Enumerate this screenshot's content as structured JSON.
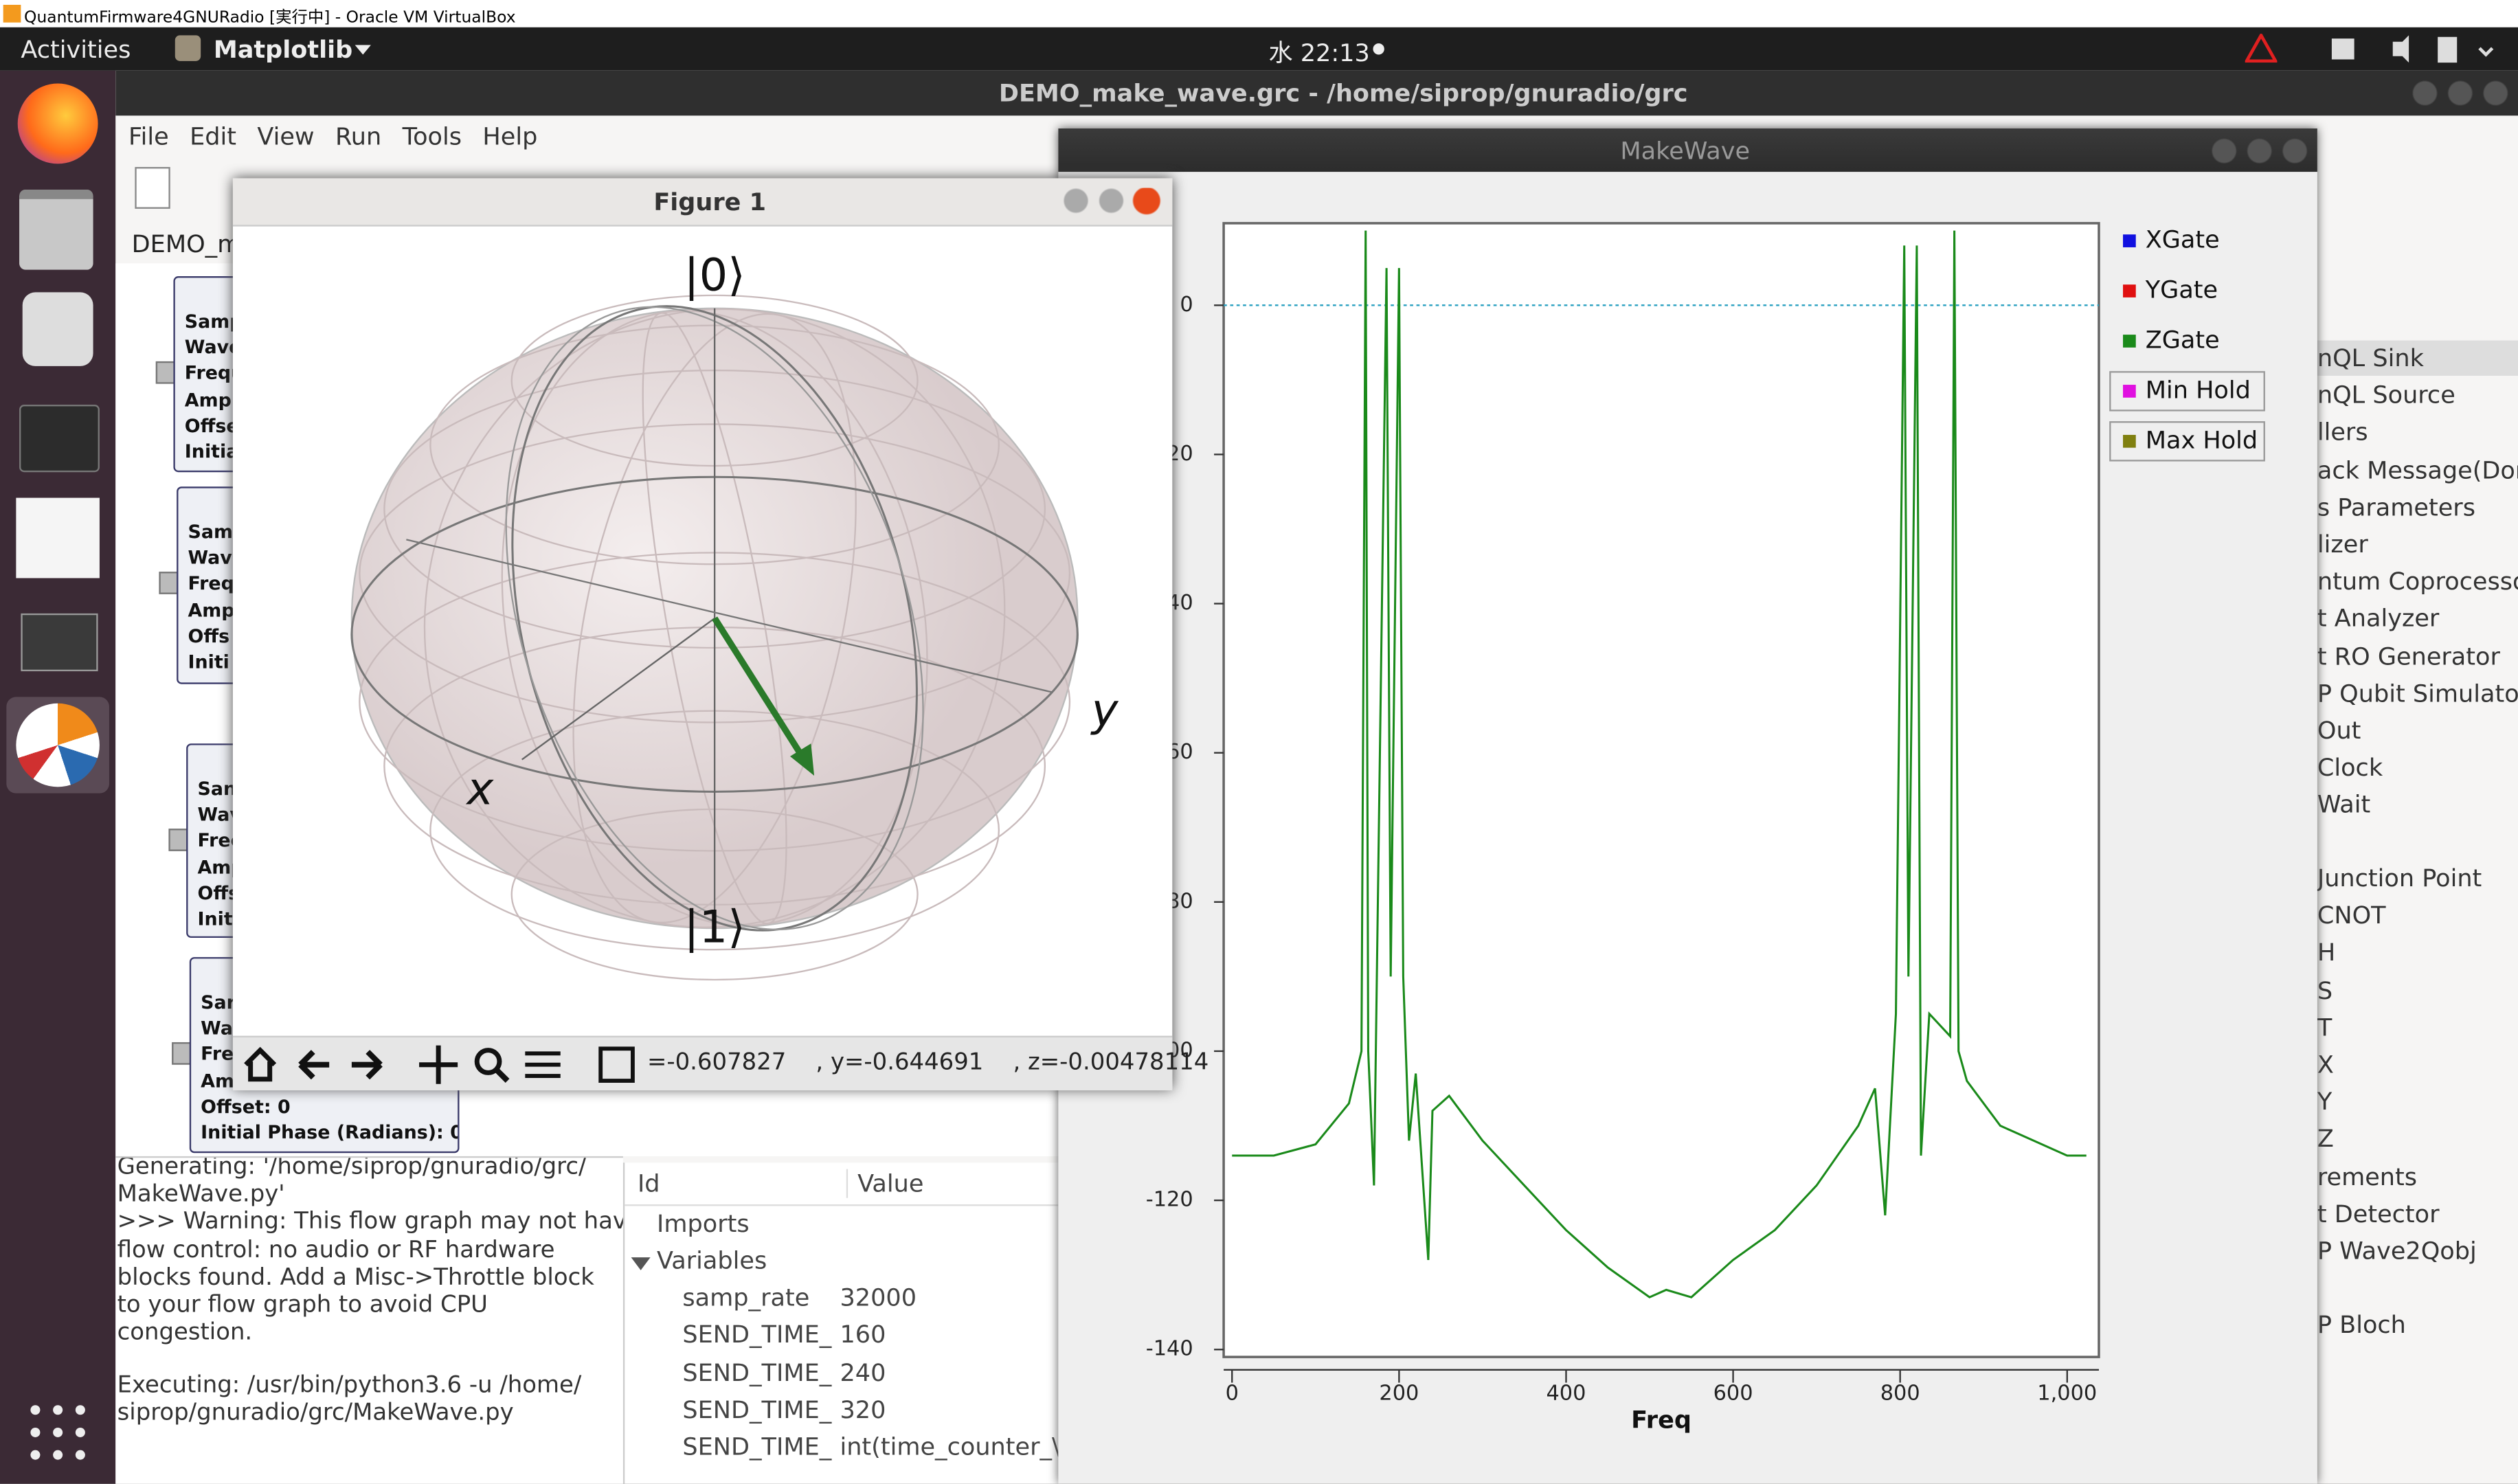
{
  "window_title": "QuantumFirmware4GNURadio [実行中] - Oracle VM VirtualBox",
  "topbar": {
    "activities": "Activities",
    "app": "Matplotlib",
    "clock": "水 22:13"
  },
  "grc": {
    "title": "DEMO_make_wave.grc - /home/siprop/gnuradio/grc",
    "menu": [
      "File",
      "Edit",
      "View",
      "Run",
      "Tools",
      "Help"
    ],
    "tab": "DEMO_m",
    "blocks": [
      [
        "Samp",
        "Wave",
        "Frequ",
        "Ampl",
        "Offse",
        "Initia"
      ],
      [
        "Sam",
        "Wav",
        "Freq",
        "Amp",
        "Offs",
        "Initi"
      ],
      [
        "San",
        "Wav",
        "Frec",
        "Amp",
        "Offs",
        "Init"
      ],
      [
        "Sar",
        "Wa",
        "Fre",
        "Am",
        "Offset: 0",
        "Initial Phase (Radians): 0"
      ]
    ],
    "console_generate": [
      "Generating: '/home/siprop/gnuradio/grc/",
      "MakeWave.py'",
      ">>> Warning: This flow graph may not have",
      "flow control: no audio or RF hardware",
      "blocks found. Add a Misc->Throttle block",
      "to your flow graph to avoid CPU",
      "congestion."
    ],
    "console_execute": [
      "Executing: /usr/bin/python3.6 -u /home/",
      "siprop/gnuradio/grc/MakeWave.py"
    ],
    "variables": {
      "header": [
        "Id",
        "Value"
      ],
      "imports": "Imports",
      "group": "Variables",
      "rows": [
        [
          "samp_rate",
          32000
        ],
        [
          "SEND_TIME_",
          160
        ],
        [
          "SEND_TIME_",
          240
        ],
        [
          "SEND_TIME_",
          320
        ],
        [
          "SEND_TIME_",
          "int(time_counter_\\"
        ]
      ]
    },
    "block_library": [
      [
        "nQL Sink",
        "nQL Source",
        "llers",
        "ack Message(Dor",
        "s Parameters",
        "lizer",
        "ntum Coprocessor",
        "t Analyzer",
        "t RO Generator",
        "P Qubit Simulator",
        "Out",
        "Clock",
        "Wait"
      ],
      [
        "Junction Point",
        "CNOT",
        "H",
        "S",
        "T",
        "X",
        "Y",
        "Z",
        "rements",
        "t Detector",
        "P Wave2Qobj"
      ],
      [
        "P Bloch"
      ]
    ]
  },
  "figure": {
    "title": "Figure 1",
    "ket0": "|0⟩",
    "ket1": "|1⟩",
    "x": "x",
    "y": "y",
    "coords": "=-0.607827    , y=-0.644691    , z=-0.00478114"
  },
  "makewave": {
    "title": "MakeWave"
  },
  "chart_data": {
    "type": "line",
    "xlabel": "Freq",
    "xlim": [
      -10,
      1038
    ],
    "ylim": [
      -141,
      11
    ],
    "xticks": [
      0,
      200,
      400,
      600,
      800,
      {
        "value": 1000,
        "label": "1,000"
      }
    ],
    "yticks": [
      0,
      -20,
      -40,
      -60,
      -80,
      -100,
      -120,
      -140
    ],
    "hline": 0,
    "legend": [
      {
        "name": "XGate",
        "color": "#1010e0"
      },
      {
        "name": "YGate",
        "color": "#e01010"
      },
      {
        "name": "ZGate",
        "color": "#1a8a1a"
      },
      {
        "name": "Min Hold",
        "color": "#e010e0"
      },
      {
        "name": "Max Hold",
        "color": "#808010"
      }
    ],
    "series": [
      {
        "name": "ZGate",
        "color": "#1a8a1a",
        "x": [
          0,
          50,
          100,
          140,
          155,
          160,
          163,
          170,
          185,
          190,
          200,
          205,
          212,
          220,
          235,
          240,
          260,
          300,
          350,
          400,
          420,
          450,
          500,
          520,
          550,
          600,
          650,
          700,
          750,
          770,
          782,
          795,
          805,
          810,
          820,
          825,
          835,
          860,
          865,
          870,
          880,
          920,
          1000,
          1023
        ],
        "values": [
          -114,
          -114,
          -112.5,
          -107,
          -100,
          10,
          -100,
          -118,
          5,
          -90,
          5,
          -90,
          -112,
          -103,
          -128,
          -108,
          -106,
          -112,
          -118,
          -124,
          -126,
          -129,
          -133,
          -132,
          -133,
          -128,
          -124,
          -118,
          -110,
          -105,
          -122,
          -95,
          8,
          -90,
          8,
          -114,
          -95,
          -98,
          10,
          -100,
          -104,
          -110,
          -114,
          -114
        ]
      }
    ]
  }
}
